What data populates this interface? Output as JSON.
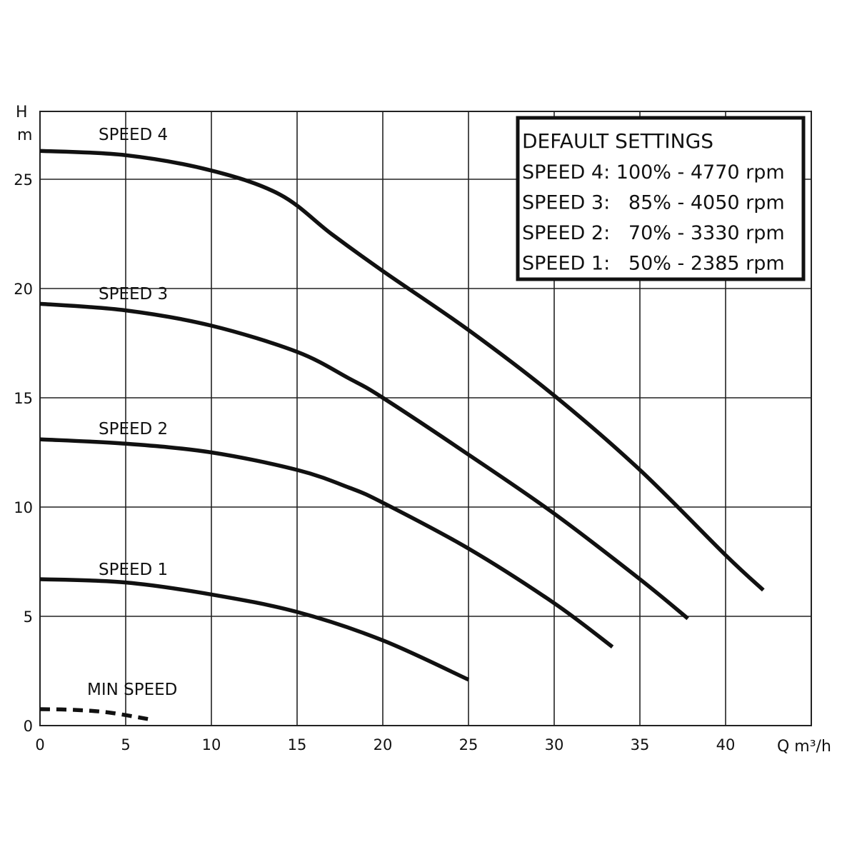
{
  "chart_data": {
    "type": "line",
    "xlabel": "Q m³/h",
    "ylabel": [
      "H",
      "m"
    ],
    "xlim": [
      0,
      45
    ],
    "ylim": [
      0,
      28
    ],
    "x_ticks": [
      0,
      5,
      10,
      15,
      20,
      25,
      30,
      35,
      40
    ],
    "y_ticks": [
      0,
      5,
      10,
      15,
      20,
      25
    ],
    "grid": true,
    "series": [
      {
        "name": "SPEED 4",
        "dashed": false,
        "x": [
          0,
          5,
          10,
          14,
          17,
          20,
          25,
          30,
          35,
          40,
          42.2
        ],
        "y": [
          26.3,
          26.1,
          25.4,
          24.3,
          22.5,
          20.8,
          18.1,
          15.1,
          11.7,
          7.8,
          6.2
        ]
      },
      {
        "name": "SPEED 3",
        "dashed": false,
        "x": [
          0,
          5,
          10,
          15,
          18,
          20,
          25,
          30,
          35,
          37.8
        ],
        "y": [
          19.3,
          19.0,
          18.3,
          17.1,
          15.9,
          15.0,
          12.4,
          9.7,
          6.7,
          4.9
        ]
      },
      {
        "name": "SPEED 2",
        "dashed": false,
        "x": [
          0,
          5,
          10,
          15,
          18,
          20,
          25,
          30,
          33.4
        ],
        "y": [
          13.1,
          12.9,
          12.5,
          11.7,
          10.9,
          10.2,
          8.1,
          5.6,
          3.6
        ]
      },
      {
        "name": "SPEED 1",
        "dashed": false,
        "x": [
          0,
          5,
          10,
          15,
          20,
          25
        ],
        "y": [
          6.7,
          6.55,
          6.0,
          5.2,
          3.9,
          2.1
        ]
      },
      {
        "name": "MIN SPEED",
        "dashed": true,
        "x": [
          0,
          2,
          4,
          6.3
        ],
        "y": [
          0.75,
          0.72,
          0.6,
          0.3
        ]
      }
    ],
    "legend": {
      "placement": "top-right",
      "title": "DEFAULT SETTINGS",
      "lines": [
        "SPEED 4: 100% - 4770 rpm",
        "SPEED 3:   85% - 4050 rpm",
        "SPEED 2:   70% - 3330 rpm",
        "SPEED 1:   50% - 2385 rpm"
      ]
    }
  }
}
